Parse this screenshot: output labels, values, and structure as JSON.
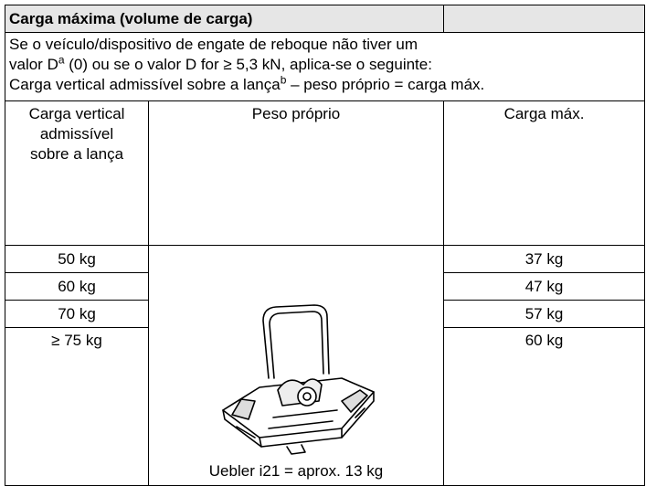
{
  "table": {
    "title": "Carga máxima (volume de carga)",
    "intro": {
      "line1": "Se o veículo/dispositivo de engate de reboque não tiver um",
      "line2_a": "valor D",
      "line2_sup": "a",
      "line2_b": " (0) ou se o valor D for ≥ 5,3 kN, aplica-se o seguinte:",
      "line3_a": "Carga vertical admissível sobre a lança",
      "line3_sup": "b",
      "line3_b": " – peso próprio = carga máx."
    },
    "columns": [
      "Carga vertical admissível sobre a lança",
      "Peso próprio",
      "Carga máx."
    ],
    "rows": [
      [
        "50 kg",
        "37 kg"
      ],
      [
        "60 kg",
        "47 kg"
      ],
      [
        "70 kg",
        "57 kg"
      ],
      [
        "≥ 75 kg",
        "60 kg"
      ]
    ],
    "image_caption": "Uebler i21 = aprox. 13 kg"
  }
}
